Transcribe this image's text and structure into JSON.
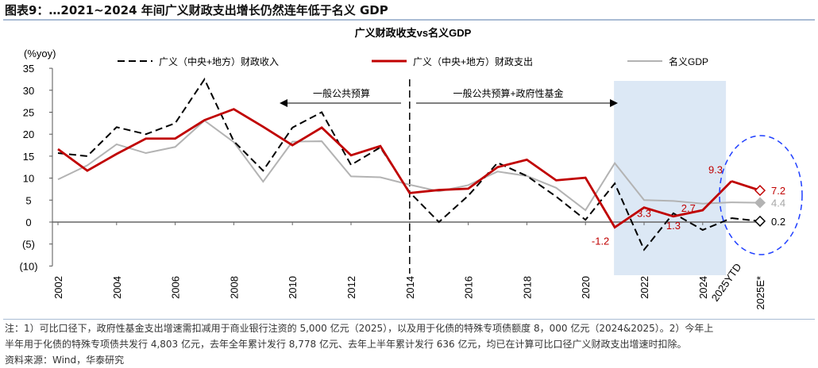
{
  "title": "图表9：…2021~2024 年间广义财政支出增长仍然连年低于名义 GDP",
  "notes": [
    "注：1）可比口径下，政府性基金支出增速需扣减用于商业银行注资的 5,000 亿元（2025），以及用于化债的特殊专项债额度 8，000 亿元（2024&2025）。2）今年上",
    "半年用于化债的特殊专项债共发行 4,803 亿元，去年全年累计发行 8,778 亿元、去年上半年累计发行 636 亿元，均已在计算可比口径广义财政支出增速时扣除。",
    "资料来源：Wind，华泰研究"
  ],
  "chart_data": {
    "type": "line",
    "title": "广义财政收支vs名义GDP",
    "ylabel": "(%yoy)",
    "ylim": [
      -10,
      35
    ],
    "yticks": [
      35,
      30,
      25,
      20,
      15,
      10,
      5,
      0,
      -5,
      -10
    ],
    "ytick_labels": [
      "35",
      "30",
      "25",
      "20",
      "15",
      "10",
      "5",
      "0",
      "(5)",
      "(10)"
    ],
    "categories": [
      "2002",
      "2003",
      "2004",
      "2005",
      "2006",
      "2007",
      "2008",
      "2009",
      "2010",
      "2011",
      "2012",
      "2013",
      "2014",
      "2015",
      "2016",
      "2017",
      "2018",
      "2019",
      "2020",
      "2021",
      "2022",
      "2023",
      "2024",
      "2025YTD",
      "2025E*"
    ],
    "xtick_labels": [
      "2002",
      "2004",
      "2006",
      "2008",
      "2010",
      "2012",
      "2014",
      "2016",
      "2018",
      "2020",
      "2022",
      "2024",
      "2025YTD",
      "2025E*"
    ],
    "series": [
      {
        "name": "广义（中央+地方）财政收入",
        "color": "#000000",
        "style": "dashed",
        "values": [
          15.7,
          15.0,
          21.6,
          20.0,
          22.5,
          32.5,
          18.4,
          11.7,
          21.5,
          25.0,
          13.0,
          17.0,
          6.8,
          0.0,
          6.0,
          13.5,
          10.5,
          5.8,
          0.5,
          8.8,
          -6.3,
          2.0,
          -1.8,
          0.9,
          0.2
        ]
      },
      {
        "name": "广义（中央+地方）财政支出",
        "color": "#c00000",
        "style": "solid",
        "values": [
          16.6,
          11.7,
          15.5,
          19.0,
          19.0,
          23.2,
          25.7,
          21.7,
          17.5,
          21.5,
          15.2,
          17.3,
          6.6,
          7.3,
          7.6,
          12.5,
          14.2,
          9.5,
          10.1,
          -1.2,
          3.3,
          1.3,
          2.7,
          9.3,
          7.2
        ]
      },
      {
        "name": "名义GDP",
        "color": "#b3b3b3",
        "style": "solid",
        "values": [
          9.7,
          12.9,
          17.7,
          15.7,
          17.1,
          23.1,
          18.2,
          9.2,
          18.3,
          18.4,
          10.4,
          10.2,
          8.5,
          7.0,
          8.4,
          11.5,
          10.5,
          7.8,
          2.7,
          13.4,
          5.0,
          4.8,
          4.2,
          4.5,
          4.4
        ]
      }
    ],
    "data_labels": [
      {
        "series": 1,
        "index": 19,
        "text": "-1.2"
      },
      {
        "series": 1,
        "index": 20,
        "text": "3.3"
      },
      {
        "series": 1,
        "index": 21,
        "text": "1.3"
      },
      {
        "series": 1,
        "index": 22,
        "text": "2.7"
      },
      {
        "series": 1,
        "index": 23,
        "text": "9.3"
      },
      {
        "series": 1,
        "index": 24,
        "text": "7.2"
      },
      {
        "series": 2,
        "index": 24,
        "text": "4.4"
      },
      {
        "series": 0,
        "index": 24,
        "text": "0.2"
      }
    ],
    "annotations": {
      "left_arrow": "一般公共预算",
      "right_arrow": "一般公共预算+政府性基金"
    },
    "shaded_range": [
      "2021",
      "2025YTD"
    ],
    "divider_at": "2014",
    "legend_placement": "top",
    "colors": {
      "shade": "#dce8f5",
      "ellipse": "#1f3fff"
    }
  }
}
